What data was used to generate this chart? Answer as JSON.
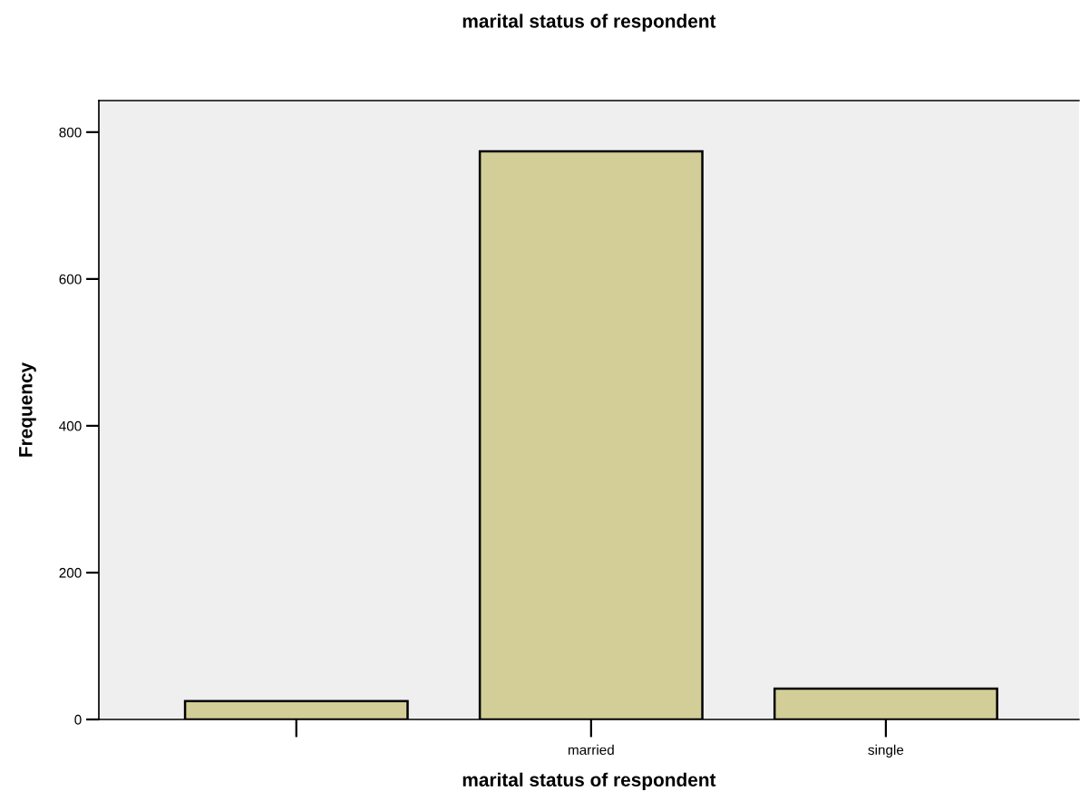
{
  "chart_data": {
    "type": "bar",
    "title": "marital status of respondent",
    "xlabel": "marital status of respondent",
    "ylabel": "Frequency",
    "categories": [
      null,
      "married",
      "single"
    ],
    "values": [
      25,
      774,
      42
    ],
    "color": "#d3ce97",
    "ylim": [
      0,
      843
    ],
    "yticks": [
      0,
      200,
      400,
      600,
      800
    ],
    "grid": false,
    "legend": false
  }
}
